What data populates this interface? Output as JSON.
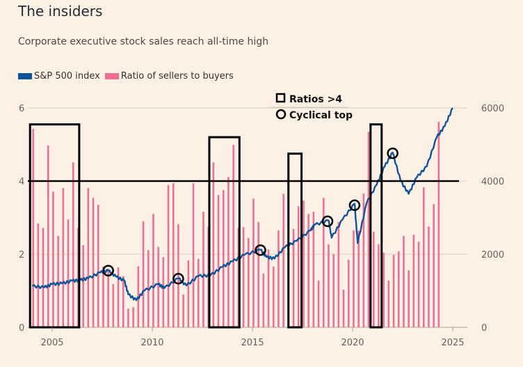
{
  "title": "The insiders",
  "subtitle": "Corporate executive stock sales reach all-time high",
  "legend": [
    {
      "label": "S&P 500 index",
      "color": "#0f5499"
    },
    {
      "label": "Ratio of sellers to buyers",
      "color": "#f16d92"
    }
  ],
  "annotation_key": {
    "box_label": "Ratios >4",
    "circle_label": "Cyclical top"
  },
  "chart_data": {
    "type": "bar+line",
    "title": "The insiders",
    "subtitle": "Corporate executive stock sales reach all-time high",
    "xlabel": "",
    "ylabel_left": "Ratio of sellers to buyers",
    "ylabel_right": "S&P 500 index",
    "x_ticks": [
      "2005",
      "2010",
      "2015",
      "2020",
      "2025"
    ],
    "y_left_ticks": [
      "0",
      "2",
      "4",
      "6"
    ],
    "y_right_ticks": [
      "0",
      "2000",
      "4000",
      "6000"
    ],
    "ylim_left": [
      0,
      6
    ],
    "ylim_right": [
      0,
      6000
    ],
    "xlim": [
      2004.0,
      2026.2
    ],
    "grid": true,
    "legend_position": "top-left",
    "threshold_line": 4,
    "bar_series": {
      "name": "Ratio of sellers to buyers",
      "start": "2004 Q1",
      "frequency": "quarterly",
      "values": [
        5.43,
        2.84,
        2.72,
        4.97,
        3.71,
        2.5,
        3.81,
        2.95,
        4.51,
        2.72,
        2.25,
        3.81,
        3.54,
        3.35,
        1.66,
        1.6,
        1.18,
        1.64,
        1.4,
        0.51,
        0.55,
        1.67,
        2.9,
        2.11,
        3.1,
        2.2,
        1.92,
        3.89,
        3.94,
        2.82,
        0.9,
        1.83,
        3.94,
        1.87,
        3.16,
        2.74,
        4.51,
        3.62,
        3.75,
        4.11,
        4.99,
        2.72,
        2.74,
        2.44,
        3.52,
        2.88,
        1.47,
        2.13,
        1.66,
        2.65,
        3.65,
        4.51,
        2.69,
        3.31,
        3.47,
        3.1,
        3.16,
        1.28,
        3.54,
        2.27,
        2.0,
        2.88,
        1.03,
        1.85,
        2.65,
        2.65,
        3.66,
        5.35,
        2.61,
        2.27,
        2.04,
        1.28,
        1.98,
        2.08,
        2.5,
        1.56,
        2.53,
        2.34,
        3.83,
        2.76,
        3.37,
        5.62
      ]
    },
    "line_series": {
      "name": "S&P 500 index",
      "points": [
        [
          2004.0,
          1130
        ],
        [
          2004.6,
          1090
        ],
        [
          2005.0,
          1180
        ],
        [
          2005.5,
          1200
        ],
        [
          2006.0,
          1270
        ],
        [
          2006.4,
          1290
        ],
        [
          2006.8,
          1340
        ],
        [
          2007.4,
          1500
        ],
        [
          2007.8,
          1550
        ],
        [
          2008.2,
          1380
        ],
        [
          2008.6,
          1280
        ],
        [
          2008.8,
          900
        ],
        [
          2009.2,
          740
        ],
        [
          2009.6,
          1000
        ],
        [
          2010.3,
          1180
        ],
        [
          2010.6,
          1070
        ],
        [
          2011.3,
          1340
        ],
        [
          2011.7,
          1140
        ],
        [
          2012.3,
          1400
        ],
        [
          2012.9,
          1420
        ],
        [
          2013.5,
          1650
        ],
        [
          2014.0,
          1800
        ],
        [
          2014.6,
          1980
        ],
        [
          2015.4,
          2120
        ],
        [
          2015.7,
          1920
        ],
        [
          2016.1,
          1880
        ],
        [
          2016.6,
          2180
        ],
        [
          2017.2,
          2360
        ],
        [
          2017.9,
          2650
        ],
        [
          2018.1,
          2800
        ],
        [
          2018.8,
          2920
        ],
        [
          2018.95,
          2450
        ],
        [
          2019.5,
          2950
        ],
        [
          2020.1,
          3380
        ],
        [
          2020.25,
          2300
        ],
        [
          2020.7,
          3400
        ],
        [
          2021.2,
          3900
        ],
        [
          2021.6,
          4400
        ],
        [
          2022.0,
          4780
        ],
        [
          2022.4,
          4000
        ],
        [
          2022.8,
          3650
        ],
        [
          2023.2,
          4100
        ],
        [
          2023.7,
          4400
        ],
        [
          2024.2,
          5200
        ],
        [
          2024.6,
          5500
        ],
        [
          2025.0,
          6000
        ]
      ]
    },
    "annotations": {
      "ratio_boxes": [
        [
          2004.0,
          2006.35,
          5.55
        ],
        [
          2012.95,
          2014.35,
          5.2
        ],
        [
          2016.9,
          2017.45,
          4.75
        ],
        [
          2021.0,
          2021.45,
          5.55
        ]
      ],
      "cyclical_tops": [
        [
          2007.8,
          1550
        ],
        [
          2011.3,
          1330
        ],
        [
          2015.4,
          2110
        ],
        [
          2018.75,
          2900
        ],
        [
          2020.1,
          3340
        ],
        [
          2022.0,
          4760
        ]
      ]
    }
  }
}
